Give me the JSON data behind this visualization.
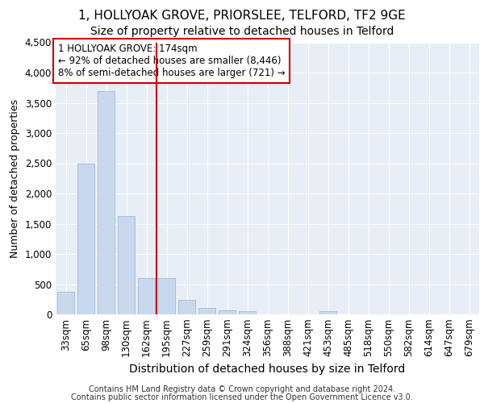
{
  "title1": "1, HOLLYOAK GROVE, PRIORSLEE, TELFORD, TF2 9GE",
  "title2": "Size of property relative to detached houses in Telford",
  "xlabel": "Distribution of detached houses by size in Telford",
  "ylabel": "Number of detached properties",
  "footer1": "Contains HM Land Registry data © Crown copyright and database right 2024.",
  "footer2": "Contains public sector information licensed under the Open Government Licence v3.0.",
  "categories": [
    "33sqm",
    "65sqm",
    "98sqm",
    "130sqm",
    "162sqm",
    "195sqm",
    "227sqm",
    "259sqm",
    "291sqm",
    "324sqm",
    "356sqm",
    "388sqm",
    "421sqm",
    "453sqm",
    "485sqm",
    "518sqm",
    "550sqm",
    "582sqm",
    "614sqm",
    "647sqm",
    "679sqm"
  ],
  "values": [
    375,
    2500,
    3700,
    1625,
    600,
    600,
    240,
    110,
    65,
    55,
    0,
    0,
    0,
    60,
    0,
    0,
    0,
    0,
    0,
    0,
    0
  ],
  "bar_color": "#c9d9ed",
  "bar_edge_color": "#a0b8d8",
  "vline_x": 4.5,
  "vline_color": "#cc0000",
  "annotation_line1": "1 HOLLYOAK GROVE: 174sqm",
  "annotation_line2": "← 92% of detached houses are smaller (8,446)",
  "annotation_line3": "8% of semi-detached houses are larger (721) →",
  "annotation_box_color": "#ffffff",
  "annotation_box_edge": "#cc0000",
  "ylim": [
    0,
    4500
  ],
  "yticks": [
    0,
    500,
    1000,
    1500,
    2000,
    2500,
    3000,
    3500,
    4000,
    4500
  ],
  "plot_bg_color": "#e8eef5",
  "title1_fontsize": 11,
  "title2_fontsize": 10,
  "xlabel_fontsize": 10,
  "ylabel_fontsize": 9,
  "tick_fontsize": 8.5,
  "footer_fontsize": 7
}
